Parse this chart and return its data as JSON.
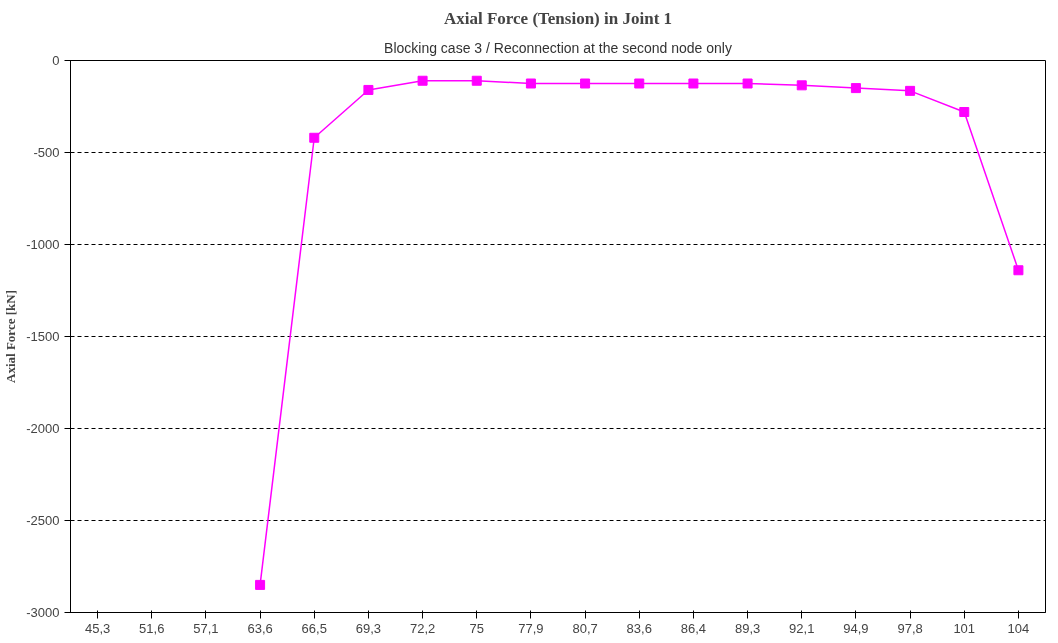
{
  "chart_data": {
    "type": "line",
    "title": "Axial Force (Tension) in Joint 1",
    "subtitle": "Blocking case 3 / Reconnection at the second node only",
    "ylabel": "Axial Force [kN]",
    "categories": [
      "45,3",
      "51,6",
      "57,1",
      "63,6",
      "66,5",
      "69,3",
      "72,2",
      "75",
      "77,9",
      "80,7",
      "83,6",
      "86,4",
      "89,3",
      "92,1",
      "94,9",
      "97,8",
      "101",
      "104"
    ],
    "series": [
      {
        "color": "#ff00ff",
        "values": [
          null,
          null,
          null,
          -2850,
          -420,
          -160,
          -110,
          -110,
          -125,
          -125,
          -125,
          -125,
          -125,
          -135,
          -150,
          -165,
          -280,
          -1140
        ]
      }
    ],
    "ylim": [
      -3000,
      0
    ],
    "yticks": [
      -3000,
      -2500,
      -2000,
      -1500,
      -1000,
      -500,
      0
    ],
    "grid": "y",
    "line_style": "solid",
    "marker": "square"
  }
}
